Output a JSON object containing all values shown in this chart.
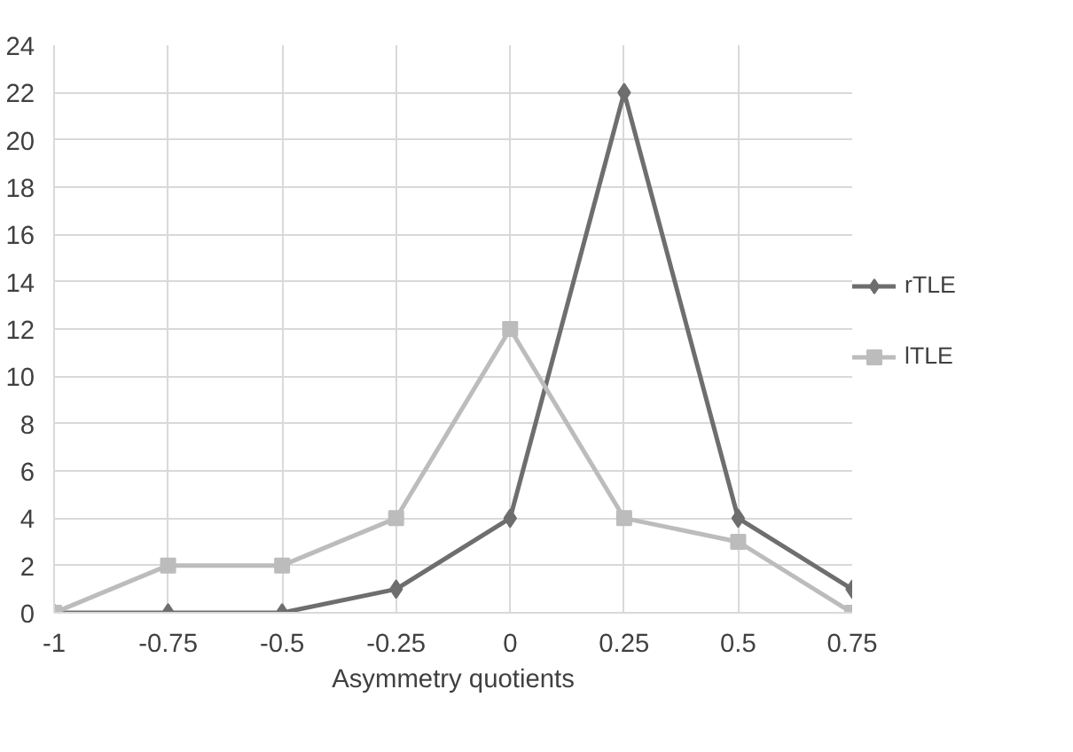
{
  "chart_data": {
    "type": "line",
    "xlabel": "Asymmetry quotients",
    "x": [
      -1,
      -0.75,
      -0.5,
      -0.25,
      0,
      0.25,
      0.5,
      0.75
    ],
    "series": [
      {
        "name": "rTLE",
        "color": "#6e6e6e",
        "marker": "diamond",
        "values": [
          0,
          0,
          0,
          1,
          4,
          22,
          4,
          1
        ]
      },
      {
        "name": "lTLE",
        "color": "#bcbcbc",
        "marker": "square",
        "values": [
          0,
          2,
          2,
          4,
          12,
          4,
          3,
          0
        ]
      }
    ],
    "xlim": [
      -1,
      0.75
    ],
    "xticks": [
      -1,
      -0.75,
      -0.5,
      -0.25,
      0,
      0.25,
      0.5,
      0.75
    ],
    "ylim": [
      0,
      24
    ],
    "yticks": [
      0,
      2,
      4,
      6,
      8,
      10,
      12,
      14,
      16,
      18,
      20,
      22,
      24
    ],
    "grid": true,
    "legend": "right",
    "line_style": "solid"
  }
}
